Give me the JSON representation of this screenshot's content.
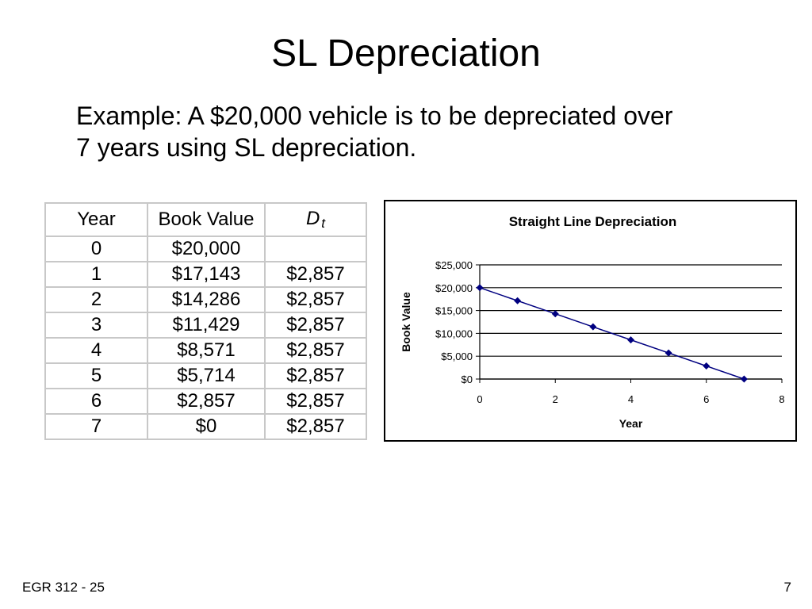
{
  "slide": {
    "title": "SL Depreciation",
    "example_line1": "Example:  A $20,000 vehicle is to be depreciated over",
    "example_line2": "7 years using SL depreciation."
  },
  "table": {
    "headers": {
      "year": "Year",
      "book_value": "Book Value",
      "dt_symbol": "D",
      "dt_sub": "t"
    },
    "rows": [
      {
        "year": "0",
        "book_value": "$20,000",
        "dt": ""
      },
      {
        "year": "1",
        "book_value": "$17,143",
        "dt": "$2,857"
      },
      {
        "year": "2",
        "book_value": "$14,286",
        "dt": "$2,857"
      },
      {
        "year": "3",
        "book_value": "$11,429",
        "dt": "$2,857"
      },
      {
        "year": "4",
        "book_value": "$8,571",
        "dt": "$2,857"
      },
      {
        "year": "5",
        "book_value": "$5,714",
        "dt": "$2,857"
      },
      {
        "year": "6",
        "book_value": "$2,857",
        "dt": "$2,857"
      },
      {
        "year": "7",
        "book_value": "$0",
        "dt": "$2,857"
      }
    ]
  },
  "chart_data": {
    "type": "line",
    "title": "Straight Line Depreciation",
    "xlabel": "Year",
    "ylabel": "Book Value",
    "x": [
      0,
      1,
      2,
      3,
      4,
      5,
      6,
      7
    ],
    "series": [
      {
        "values": [
          20000,
          17143,
          14286,
          11429,
          8571,
          5714,
          2857,
          0
        ]
      }
    ],
    "xlim": [
      0,
      8
    ],
    "ylim": [
      0,
      25000
    ],
    "x_ticks": [
      "0",
      "2",
      "4",
      "6",
      "8"
    ],
    "y_ticks": [
      "$0",
      "$5,000",
      "$10,000",
      "$15,000",
      "$20,000",
      "$25,000"
    ],
    "grid": true,
    "legend": "none",
    "line_color": "#000080",
    "marker": "diamond"
  },
  "footer": {
    "left": "EGR 312 - 25",
    "page_number": "7"
  }
}
